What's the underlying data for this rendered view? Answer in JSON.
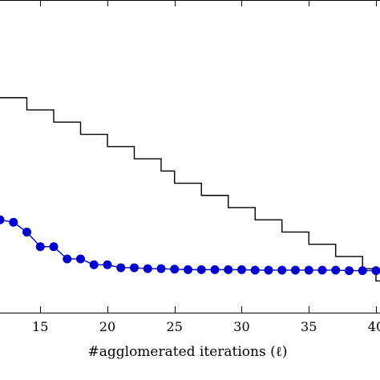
{
  "chart_data": {
    "type": "line",
    "xlabel": "#agglomerated iterations (ℓ)",
    "ylabel": "",
    "title": "",
    "grid": false,
    "legend": "none",
    "xlim": [
      12,
      40.3
    ],
    "x_ticks": [
      15,
      20,
      25,
      30,
      35,
      40
    ],
    "x_tick_labels": [
      "15",
      "20",
      "25",
      "30",
      "35",
      "40"
    ],
    "series": [
      {
        "style": "step",
        "color": "#000000",
        "x": [
          12,
          14,
          16,
          18,
          20,
          22,
          24,
          25,
          27,
          29,
          31,
          33,
          35,
          37,
          39,
          40
        ],
        "values": [
          8.6,
          8.35,
          8.1,
          7.85,
          7.6,
          7.35,
          7.1,
          6.85,
          6.6,
          6.35,
          6.1,
          5.85,
          5.6,
          5.35,
          5.1,
          4.85
        ]
      },
      {
        "style": "line-markers",
        "color": "#0000cc",
        "x": [
          12,
          13,
          14,
          15,
          16,
          17,
          18,
          19,
          20,
          21,
          22,
          23,
          24,
          25,
          26,
          27,
          28,
          29,
          30,
          31,
          32,
          33,
          34,
          35,
          36,
          37,
          38,
          39,
          40
        ],
        "values": [
          6.1,
          6.05,
          5.85,
          5.55,
          5.55,
          5.3,
          5.3,
          5.18,
          5.18,
          5.12,
          5.12,
          5.1,
          5.1,
          5.09,
          5.08,
          5.08,
          5.08,
          5.08,
          5.08,
          5.07,
          5.07,
          5.07,
          5.07,
          5.07,
          5.07,
          5.07,
          5.06,
          5.06,
          5.06
        ]
      }
    ],
    "ylim": [
      4.2,
      10.6
    ]
  }
}
